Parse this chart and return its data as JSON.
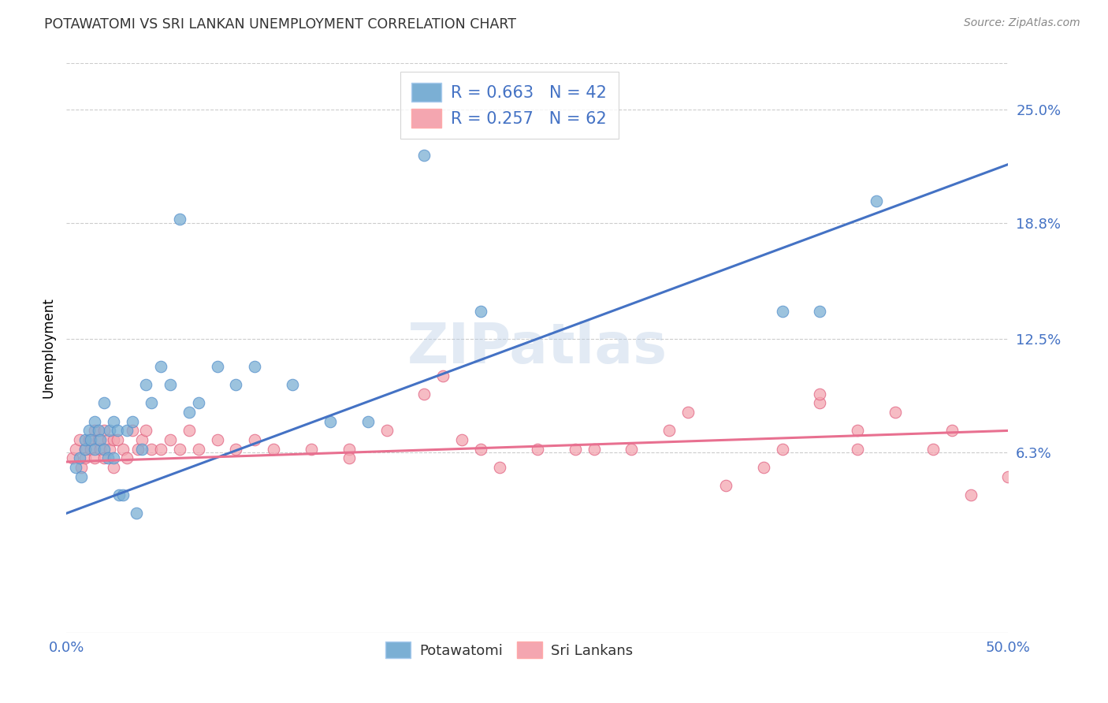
{
  "title": "POTAWATOMI VS SRI LANKAN UNEMPLOYMENT CORRELATION CHART",
  "source": "Source: ZipAtlas.com",
  "ylabel": "Unemployment",
  "xlim": [
    0.0,
    0.5
  ],
  "ylim": [
    -0.035,
    0.275
  ],
  "ytick_positions": [
    0.063,
    0.125,
    0.188,
    0.25
  ],
  "ytick_labels": [
    "6.3%",
    "12.5%",
    "18.8%",
    "25.0%"
  ],
  "blue_color": "#7BAFD4",
  "pink_color": "#F4A6B0",
  "blue_line_color": "#4472C4",
  "pink_line_color": "#E87090",
  "blue_dot_edge": "#5590CC",
  "pink_dot_edge": "#E06080",
  "R_blue": 0.663,
  "N_blue": 42,
  "R_pink": 0.257,
  "N_pink": 62,
  "watermark": "ZIPatlas",
  "background_color": "#FFFFFF",
  "grid_color": "#CCCCCC",
  "blue_line_start_y": 0.03,
  "blue_line_end_y": 0.22,
  "pink_line_start_y": 0.058,
  "pink_line_end_y": 0.075,
  "blue_x": [
    0.005,
    0.007,
    0.008,
    0.01,
    0.01,
    0.012,
    0.013,
    0.015,
    0.015,
    0.017,
    0.018,
    0.02,
    0.02,
    0.022,
    0.023,
    0.025,
    0.025,
    0.027,
    0.028,
    0.03,
    0.032,
    0.035,
    0.037,
    0.04,
    0.042,
    0.045,
    0.05,
    0.055,
    0.06,
    0.065,
    0.07,
    0.08,
    0.09,
    0.1,
    0.12,
    0.14,
    0.16,
    0.19,
    0.22,
    0.38,
    0.4,
    0.43
  ],
  "blue_y": [
    0.055,
    0.06,
    0.05,
    0.065,
    0.07,
    0.075,
    0.07,
    0.08,
    0.065,
    0.075,
    0.07,
    0.09,
    0.065,
    0.06,
    0.075,
    0.08,
    0.06,
    0.075,
    0.04,
    0.04,
    0.075,
    0.08,
    0.03,
    0.065,
    0.1,
    0.09,
    0.11,
    0.1,
    0.19,
    0.085,
    0.09,
    0.11,
    0.1,
    0.11,
    0.1,
    0.08,
    0.08,
    0.225,
    0.14,
    0.14,
    0.14,
    0.2
  ],
  "pink_x": [
    0.003,
    0.005,
    0.007,
    0.008,
    0.01,
    0.01,
    0.012,
    0.013,
    0.015,
    0.015,
    0.017,
    0.018,
    0.02,
    0.02,
    0.022,
    0.023,
    0.025,
    0.025,
    0.027,
    0.03,
    0.032,
    0.035,
    0.038,
    0.04,
    0.042,
    0.045,
    0.05,
    0.055,
    0.06,
    0.065,
    0.07,
    0.08,
    0.09,
    0.1,
    0.11,
    0.13,
    0.15,
    0.17,
    0.19,
    0.21,
    0.23,
    0.25,
    0.27,
    0.3,
    0.32,
    0.35,
    0.37,
    0.38,
    0.4,
    0.42,
    0.44,
    0.46,
    0.48,
    0.5,
    0.2,
    0.28,
    0.33,
    0.4,
    0.42,
    0.47,
    0.15,
    0.22
  ],
  "pink_y": [
    0.06,
    0.065,
    0.07,
    0.055,
    0.065,
    0.06,
    0.07,
    0.065,
    0.075,
    0.06,
    0.07,
    0.065,
    0.075,
    0.06,
    0.07,
    0.065,
    0.07,
    0.055,
    0.07,
    0.065,
    0.06,
    0.075,
    0.065,
    0.07,
    0.075,
    0.065,
    0.065,
    0.07,
    0.065,
    0.075,
    0.065,
    0.07,
    0.065,
    0.07,
    0.065,
    0.065,
    0.065,
    0.075,
    0.095,
    0.07,
    0.055,
    0.065,
    0.065,
    0.065,
    0.075,
    0.045,
    0.055,
    0.065,
    0.09,
    0.065,
    0.085,
    0.065,
    0.04,
    0.05,
    0.105,
    0.065,
    0.085,
    0.095,
    0.075,
    0.075,
    0.06,
    0.065
  ]
}
